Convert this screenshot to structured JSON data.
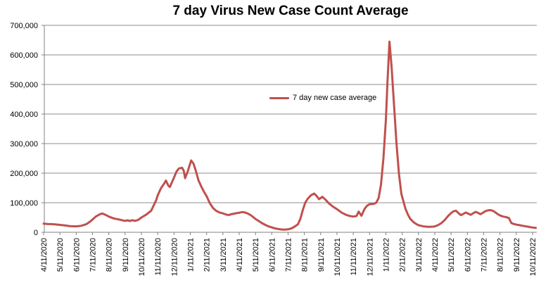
{
  "chart_data": {
    "type": "line",
    "title": "7 day Virus New Case Count Average",
    "xlabel": "",
    "ylabel": "",
    "grid": "horizontal",
    "legend_position": "center-of-plot",
    "ylim": [
      0,
      700000
    ],
    "xlim_months": [
      0,
      30.2
    ],
    "y_ticks": [
      0,
      100000,
      200000,
      300000,
      400000,
      500000,
      600000,
      700000
    ],
    "y_tick_labels": [
      "0",
      "100,000",
      "200,000",
      "300,000",
      "400,000",
      "500,000",
      "600,000",
      "700,000"
    ],
    "x_tick_labels": [
      "4/11/2020",
      "5/11/2020",
      "6/11/2020",
      "7/11/2020",
      "8/11/2020",
      "9/11/2020",
      "10/11/2020",
      "11/11/2020",
      "12/11/2020",
      "1/11/2021",
      "2/11/2021",
      "3/11/2021",
      "4/11/2021",
      "5/11/2021",
      "6/11/2021",
      "7/11/2021",
      "8/11/2021",
      "9/11/2021",
      "10/11/2021",
      "11/11/2021",
      "12/11/2021",
      "1/11/2022",
      "2/11/2022",
      "3/11/2022",
      "4/11/2022",
      "5/11/2022",
      "6/11/2022",
      "7/11/2022",
      "8/11/2022",
      "9/11/2022",
      "10/11/2022"
    ],
    "x_unit": "months since 4/11/2020, monthly ticks on the 11th",
    "series": [
      {
        "name": "7 day new case average",
        "color": "#c0504d",
        "points": [
          [
            0,
            29000
          ],
          [
            0.25,
            28000
          ],
          [
            0.5,
            27500
          ],
          [
            0.75,
            26500
          ],
          [
            1,
            25000
          ],
          [
            1.3,
            23000
          ],
          [
            1.6,
            21000
          ],
          [
            1.9,
            20000
          ],
          [
            2.1,
            20500
          ],
          [
            2.3,
            22000
          ],
          [
            2.6,
            27000
          ],
          [
            2.85,
            36000
          ],
          [
            3,
            43000
          ],
          [
            3.2,
            53000
          ],
          [
            3.45,
            61000
          ],
          [
            3.6,
            63500
          ],
          [
            3.8,
            59000
          ],
          [
            4,
            53000
          ],
          [
            4.3,
            47000
          ],
          [
            4.6,
            43500
          ],
          [
            4.8,
            41000
          ],
          [
            5,
            38500
          ],
          [
            5.15,
            40500
          ],
          [
            5.3,
            38000
          ],
          [
            5.45,
            41000
          ],
          [
            5.6,
            38500
          ],
          [
            5.8,
            42000
          ],
          [
            6,
            50000
          ],
          [
            6.3,
            60000
          ],
          [
            6.6,
            73000
          ],
          [
            6.9,
            108000
          ],
          [
            7,
            125000
          ],
          [
            7.2,
            149000
          ],
          [
            7.4,
            165000
          ],
          [
            7.5,
            175000
          ],
          [
            7.65,
            158000
          ],
          [
            7.75,
            153000
          ],
          [
            8,
            185000
          ],
          [
            8.15,
            205000
          ],
          [
            8.3,
            216000
          ],
          [
            8.5,
            218000
          ],
          [
            8.6,
            208000
          ],
          [
            8.68,
            183000
          ],
          [
            8.85,
            207000
          ],
          [
            9.05,
            243000
          ],
          [
            9.2,
            232000
          ],
          [
            9.35,
            206000
          ],
          [
            9.5,
            176000
          ],
          [
            9.7,
            152000
          ],
          [
            9.85,
            136000
          ],
          [
            10,
            122000
          ],
          [
            10.2,
            98000
          ],
          [
            10.4,
            82000
          ],
          [
            10.6,
            72000
          ],
          [
            10.8,
            67000
          ],
          [
            11,
            64000
          ],
          [
            11.2,
            60000
          ],
          [
            11.35,
            58000
          ],
          [
            11.5,
            61000
          ],
          [
            11.7,
            63000
          ],
          [
            11.85,
            65000
          ],
          [
            12,
            66000
          ],
          [
            12.2,
            68500
          ],
          [
            12.35,
            67000
          ],
          [
            12.5,
            64000
          ],
          [
            12.7,
            58000
          ],
          [
            12.85,
            52000
          ],
          [
            13,
            45000
          ],
          [
            13.2,
            38000
          ],
          [
            13.4,
            31000
          ],
          [
            13.6,
            25000
          ],
          [
            13.8,
            20000
          ],
          [
            14,
            16500
          ],
          [
            14.2,
            13000
          ],
          [
            14.4,
            11000
          ],
          [
            14.6,
            9500
          ],
          [
            14.8,
            9000
          ],
          [
            15,
            10000
          ],
          [
            15.2,
            13000
          ],
          [
            15.4,
            19000
          ],
          [
            15.6,
            27000
          ],
          [
            15.75,
            45000
          ],
          [
            15.9,
            75000
          ],
          [
            16.05,
            100000
          ],
          [
            16.2,
            113000
          ],
          [
            16.4,
            125000
          ],
          [
            16.6,
            131000
          ],
          [
            16.75,
            123000
          ],
          [
            16.9,
            112000
          ],
          [
            17.1,
            120000
          ],
          [
            17.3,
            110000
          ],
          [
            17.5,
            98000
          ],
          [
            17.75,
            87000
          ],
          [
            18,
            78000
          ],
          [
            18.3,
            66000
          ],
          [
            18.6,
            58000
          ],
          [
            18.8,
            55000
          ],
          [
            19,
            53000
          ],
          [
            19.2,
            55000
          ],
          [
            19.33,
            70000
          ],
          [
            19.5,
            56000
          ],
          [
            19.7,
            80000
          ],
          [
            19.85,
            90000
          ],
          [
            20,
            95000
          ],
          [
            20.25,
            96000
          ],
          [
            20.4,
            100000
          ],
          [
            20.55,
            115000
          ],
          [
            20.7,
            160000
          ],
          [
            20.85,
            250000
          ],
          [
            21,
            380000
          ],
          [
            21.1,
            510000
          ],
          [
            21.22,
            645000
          ],
          [
            21.35,
            560000
          ],
          [
            21.5,
            430000
          ],
          [
            21.65,
            300000
          ],
          [
            21.8,
            200000
          ],
          [
            21.95,
            130000
          ],
          [
            22.05,
            110000
          ],
          [
            22.2,
            80000
          ],
          [
            22.35,
            60000
          ],
          [
            22.5,
            45000
          ],
          [
            22.7,
            34000
          ],
          [
            22.9,
            27000
          ],
          [
            23,
            24000
          ],
          [
            23.3,
            20000
          ],
          [
            23.6,
            18500
          ],
          [
            23.9,
            19000
          ],
          [
            24,
            20000
          ],
          [
            24.2,
            24000
          ],
          [
            24.4,
            31000
          ],
          [
            24.6,
            41000
          ],
          [
            24.8,
            54000
          ],
          [
            25,
            65000
          ],
          [
            25.15,
            71000
          ],
          [
            25.3,
            73000
          ],
          [
            25.45,
            65000
          ],
          [
            25.6,
            58000
          ],
          [
            25.75,
            62000
          ],
          [
            25.9,
            67000
          ],
          [
            26.05,
            63000
          ],
          [
            26.2,
            59000
          ],
          [
            26.35,
            64000
          ],
          [
            26.5,
            69000
          ],
          [
            26.65,
            66000
          ],
          [
            26.8,
            61000
          ],
          [
            26.95,
            66000
          ],
          [
            27.1,
            71000
          ],
          [
            27.25,
            74000
          ],
          [
            27.4,
            75000
          ],
          [
            27.55,
            73000
          ],
          [
            27.7,
            68000
          ],
          [
            27.85,
            62000
          ],
          [
            28,
            57000
          ],
          [
            28.2,
            53000
          ],
          [
            28.4,
            51000
          ],
          [
            28.55,
            48000
          ],
          [
            28.7,
            31000
          ],
          [
            28.85,
            28000
          ],
          [
            29,
            26000
          ],
          [
            29.2,
            24000
          ],
          [
            29.4,
            22000
          ],
          [
            29.6,
            20000
          ],
          [
            29.8,
            18000
          ],
          [
            30,
            16000
          ],
          [
            30.2,
            15000
          ]
        ]
      }
    ]
  },
  "colors": {
    "line": "#c0504d",
    "grid": "#8e8e8e",
    "axis": "#808080",
    "text": "#000000",
    "background": "#ffffff"
  }
}
